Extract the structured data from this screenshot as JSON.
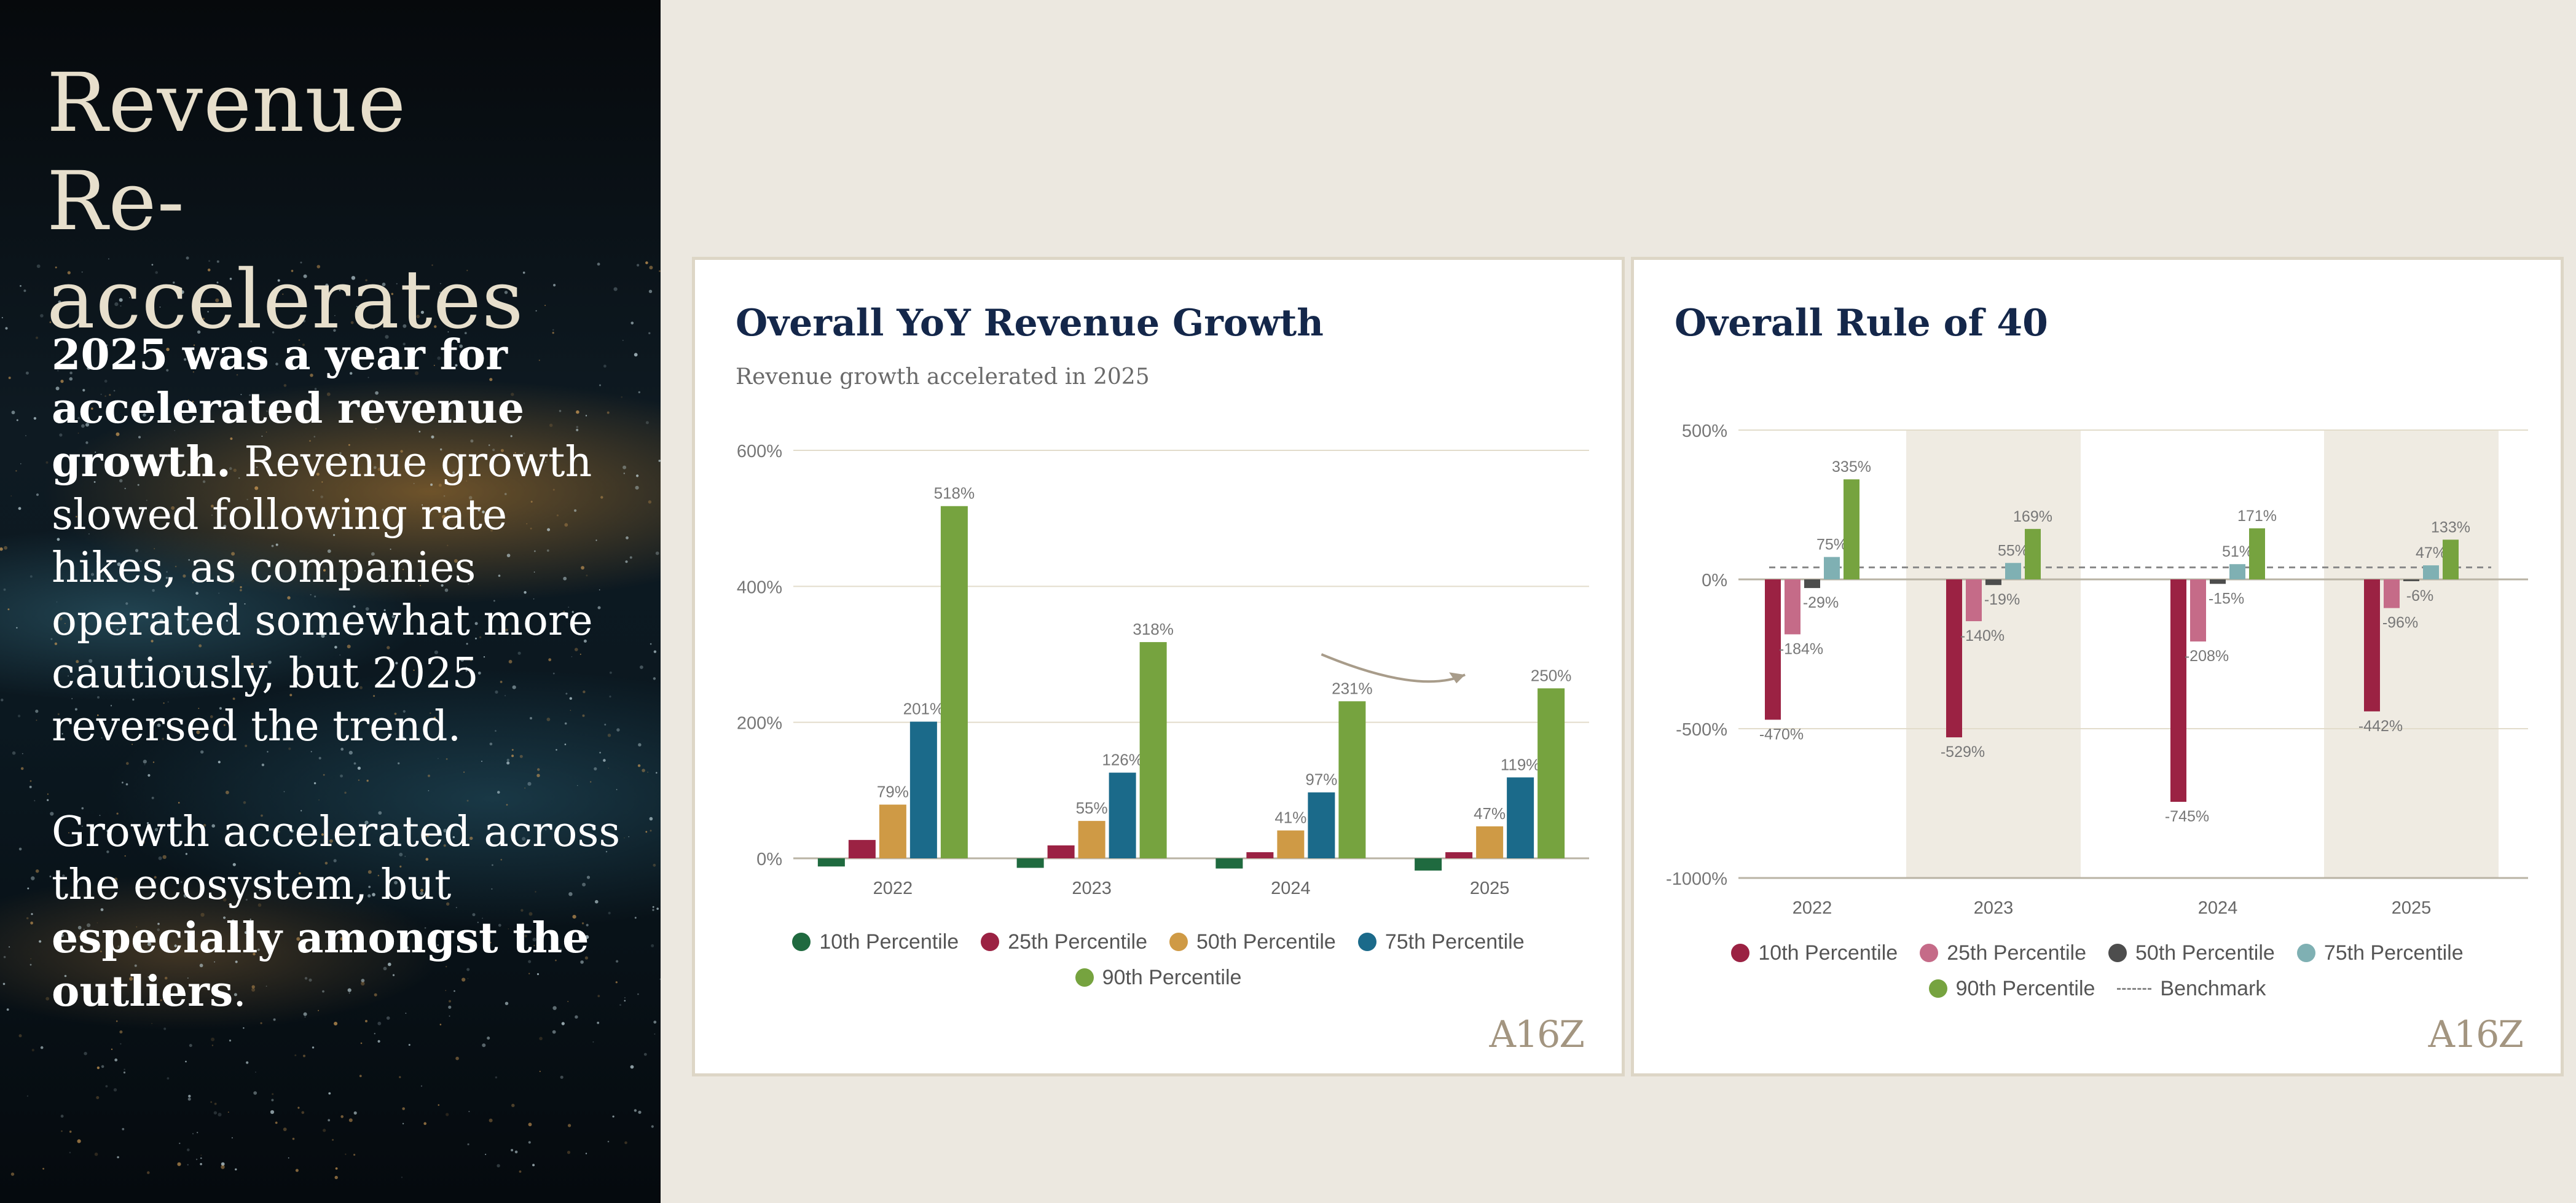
{
  "sidebar": {
    "title_line1": "Revenue",
    "title_line2": "Re-accelerates",
    "p1_bold": "2025 was a year for accelerated revenue growth.",
    "p1_rest": " Revenue growth slowed following rate hikes, as companies operated somewhat more cautiously, but 2025 reversed the trend.",
    "p2_start": "Growth accelerated across the ecosystem, but ",
    "p2_bold": "especially amongst the outliers",
    "p2_end": "."
  },
  "logo_text": "A16Z",
  "colors": {
    "background": "#ece8e0",
    "title_navy": "#14274a",
    "grid": "#e2dccb",
    "shade": "#efebe2"
  },
  "chart_data": [
    {
      "type": "bar",
      "title": "Overall YoY Revenue Growth",
      "subtitle": "Revenue growth accelerated in 2025",
      "categories": [
        "2022",
        "2023",
        "2024",
        "2025"
      ],
      "ylim": [
        -20,
        600
      ],
      "yticks": [
        0,
        200,
        400,
        600
      ],
      "ytick_labels": [
        "0%",
        "200%",
        "400%",
        "600%"
      ],
      "grid": true,
      "annotation": "arrow from 2024 to 2025",
      "series": [
        {
          "name": "10th Percentile",
          "color": "#1f6a3f",
          "values": [
            -12,
            -14,
            -15,
            -18
          ],
          "labels": [
            "",
            "",
            "",
            ""
          ]
        },
        {
          "name": "25th Percentile",
          "color": "#9b2243",
          "values": [
            27,
            19,
            9,
            9
          ],
          "labels": [
            "",
            "",
            "",
            ""
          ]
        },
        {
          "name": "50th Percentile",
          "color": "#cf9a45",
          "values": [
            79,
            55,
            41,
            47
          ],
          "labels": [
            "79%",
            "55%",
            "41%",
            "47%"
          ]
        },
        {
          "name": "75th Percentile",
          "color": "#1b6a8a",
          "values": [
            201,
            126,
            97,
            119
          ],
          "labels": [
            "201%",
            "126%",
            "97%",
            "119%"
          ]
        },
        {
          "name": "90th Percentile",
          "color": "#76a33f",
          "values": [
            518,
            318,
            231,
            250
          ],
          "labels": [
            "518%",
            "318%",
            "231%",
            "250%"
          ]
        }
      ]
    },
    {
      "type": "bar",
      "title": "Overall Rule of 40",
      "categories": [
        "2022",
        "2023",
        "2024",
        "2025"
      ],
      "ylim": [
        -1000,
        500
      ],
      "yticks": [
        -1000,
        -500,
        0,
        500
      ],
      "ytick_labels": [
        "-1000%",
        "-500%",
        "0%",
        "500%"
      ],
      "grid": true,
      "shaded_categories": [
        "2023",
        "2025"
      ],
      "benchmark": {
        "name": "Benchmark",
        "value": 40
      },
      "series": [
        {
          "name": "10th Percentile",
          "color": "#9b2243",
          "values": [
            -470,
            -529,
            -745,
            -442
          ],
          "labels": [
            "-470%",
            "-529%",
            "-745%",
            "-442%"
          ]
        },
        {
          "name": "25th Percentile",
          "color": "#c56b88",
          "values": [
            -184,
            -140,
            -208,
            -96
          ],
          "labels": [
            "-184%",
            "-140%",
            "-208%",
            "-96%"
          ]
        },
        {
          "name": "50th Percentile",
          "color": "#4d4d4d",
          "values": [
            -29,
            -19,
            -15,
            -6
          ],
          "labels": [
            "-29%",
            "-19%",
            "-15%",
            "-6%"
          ]
        },
        {
          "name": "75th Percentile",
          "color": "#7fb0b3",
          "values": [
            75,
            55,
            51,
            47
          ],
          "labels": [
            "75%",
            "55%",
            "51%",
            "47%"
          ]
        },
        {
          "name": "90th Percentile",
          "color": "#76a33f",
          "values": [
            335,
            169,
            171,
            133
          ],
          "labels": [
            "335%",
            "169%",
            "171%",
            "133%"
          ]
        }
      ]
    }
  ]
}
